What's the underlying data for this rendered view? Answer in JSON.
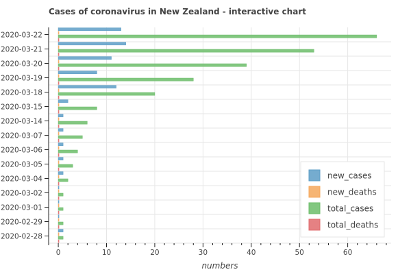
{
  "chart_data": {
    "type": "bar",
    "orientation": "horizontal",
    "title": "Cases of coronavirus in New Zealand - interactive chart",
    "xlabel": "numbers",
    "ylabel": "",
    "xlim": [
      -2,
      69
    ],
    "x_ticks": [
      0,
      10,
      20,
      30,
      40,
      50,
      60
    ],
    "grid": true,
    "legend_position": "bottom-right",
    "categories": [
      "2020-03-22",
      "2020-03-21",
      "2020-03-20",
      "2020-03-19",
      "2020-03-18",
      "2020-03-15",
      "2020-03-14",
      "2020-03-07",
      "2020-03-06",
      "2020-03-05",
      "2020-03-04",
      "2020-03-02",
      "2020-03-01",
      "2020-02-29",
      "2020-02-28"
    ],
    "series": [
      {
        "name": "new_cases",
        "color": "#5d9ec7",
        "values": [
          13,
          14,
          11,
          8,
          12,
          2,
          1,
          1,
          1,
          1,
          1,
          0,
          0,
          0,
          1
        ]
      },
      {
        "name": "new_deaths",
        "color": "#f5a85c",
        "values": [
          0,
          0,
          0,
          0,
          0,
          0,
          0,
          0,
          0,
          0,
          0,
          0,
          0,
          0,
          0
        ]
      },
      {
        "name": "total_cases",
        "color": "#6cbd6a",
        "values": [
          66,
          53,
          39,
          28,
          20,
          8,
          6,
          5,
          4,
          3,
          2,
          1,
          1,
          1,
          1
        ]
      },
      {
        "name": "total_deaths",
        "color": "#e06b6d",
        "values": [
          0,
          0,
          0,
          0,
          0,
          0,
          0,
          0,
          0,
          0,
          0,
          0,
          0,
          0,
          0
        ]
      }
    ]
  }
}
